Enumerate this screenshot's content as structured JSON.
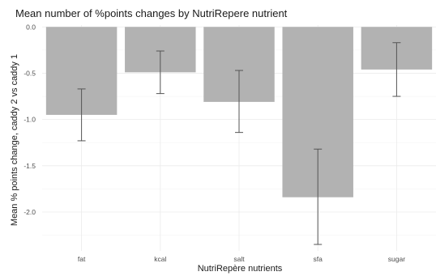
{
  "chart_data": {
    "type": "bar",
    "title": "Mean number of %points changes by NutriRepere nutrient",
    "xlabel": "NutriRepère nutrients",
    "ylabel": "Mean % points change, caddy 2 vs caddy 1",
    "categories": [
      "fat",
      "kcal",
      "salt",
      "sfa",
      "sugar"
    ],
    "values": [
      -0.95,
      -0.49,
      -0.81,
      -1.84,
      -0.46
    ],
    "error_low": [
      -1.23,
      -0.72,
      -1.14,
      -2.35,
      -0.75
    ],
    "error_high": [
      -0.67,
      -0.26,
      -0.47,
      -1.32,
      -0.17
    ],
    "ylim": [
      -2.42,
      0.02
    ],
    "yticks": [
      0.0,
      -0.5,
      -1.0,
      -1.5,
      -2.0
    ],
    "ytick_labels": [
      "0.0",
      "-0.5",
      "-1.0",
      "-1.5",
      "-2.0"
    ],
    "grid": true,
    "legend": "none",
    "colors": {
      "bar": "#b2b2b2",
      "errorbar": "#555555",
      "grid_major": "#ebebeb",
      "grid_minor": "#f5f5f5"
    }
  }
}
